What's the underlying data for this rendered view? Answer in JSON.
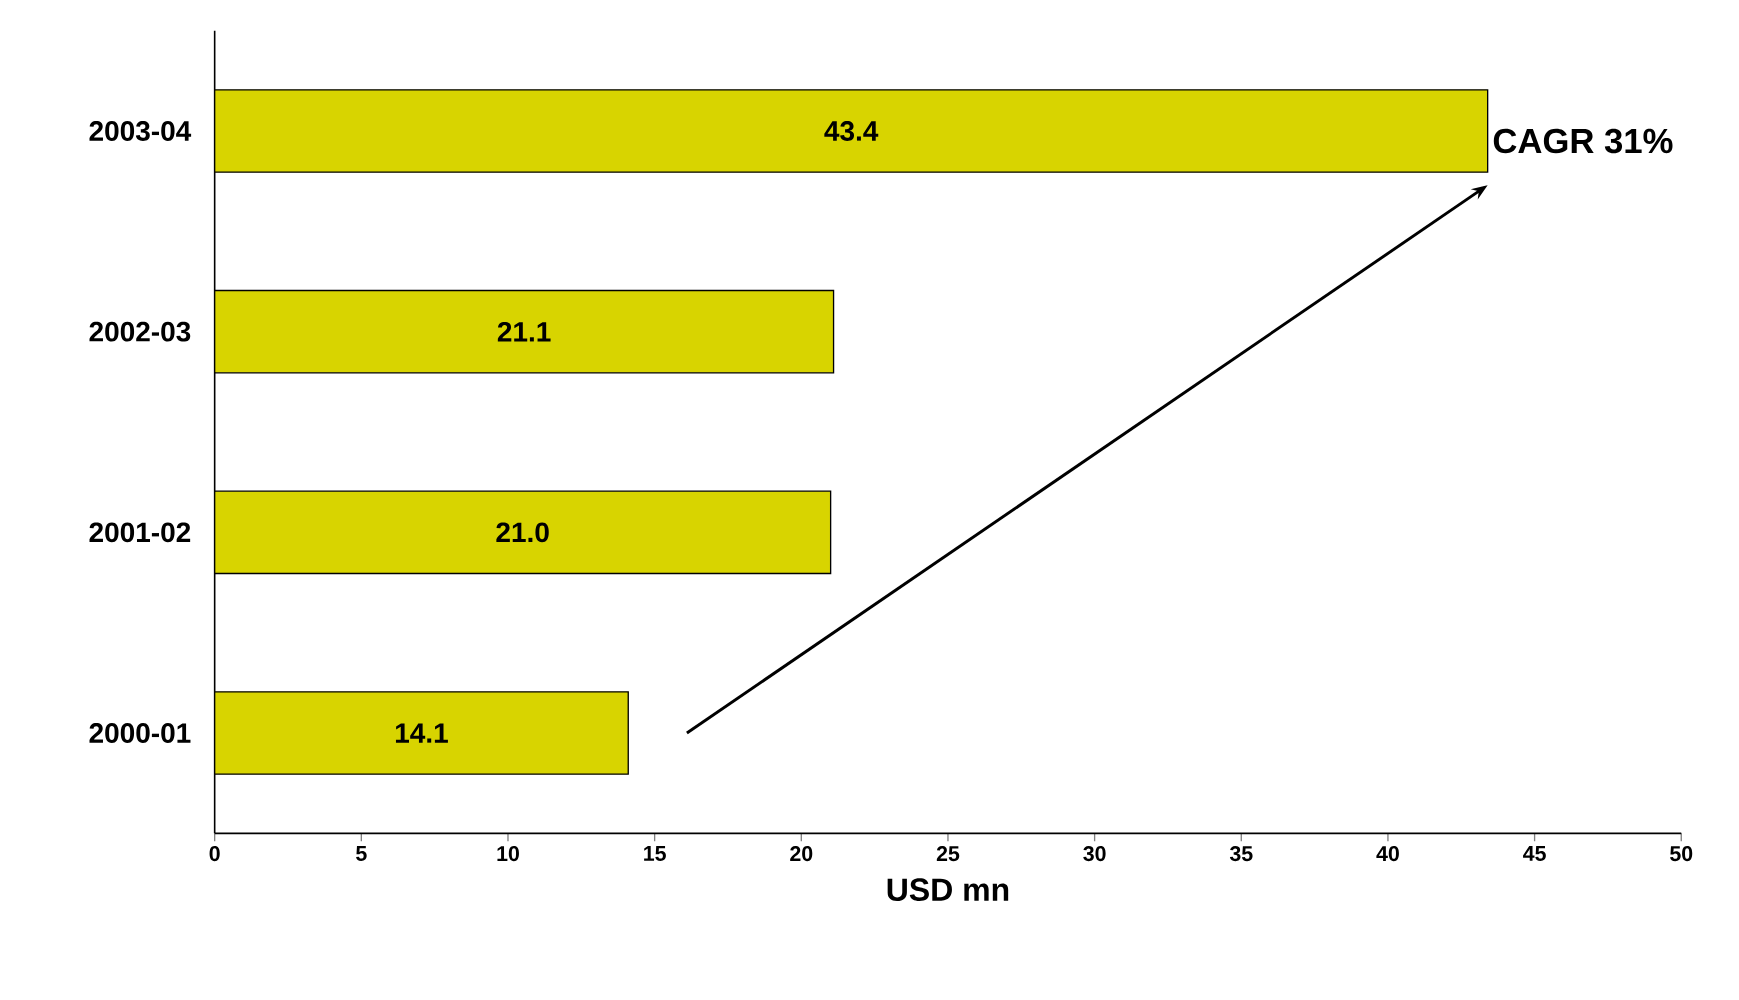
{
  "chart_data": {
    "type": "bar",
    "orientation": "horizontal",
    "xlabel": "USD mn",
    "categories": [
      "2003-04",
      "2002-03",
      "2001-02",
      "2000-01"
    ],
    "values": [
      43.4,
      21.1,
      21.0,
      14.1
    ],
    "value_labels": [
      "43.4",
      "21.1",
      "21.0",
      "14.1"
    ],
    "color": "#d8d400",
    "xlim": [
      0,
      50
    ],
    "xticks": [
      0,
      5,
      10,
      15,
      20,
      25,
      30,
      35,
      40,
      45,
      50
    ],
    "annotations": [
      "CAGR 31%"
    ],
    "grid": false
  }
}
